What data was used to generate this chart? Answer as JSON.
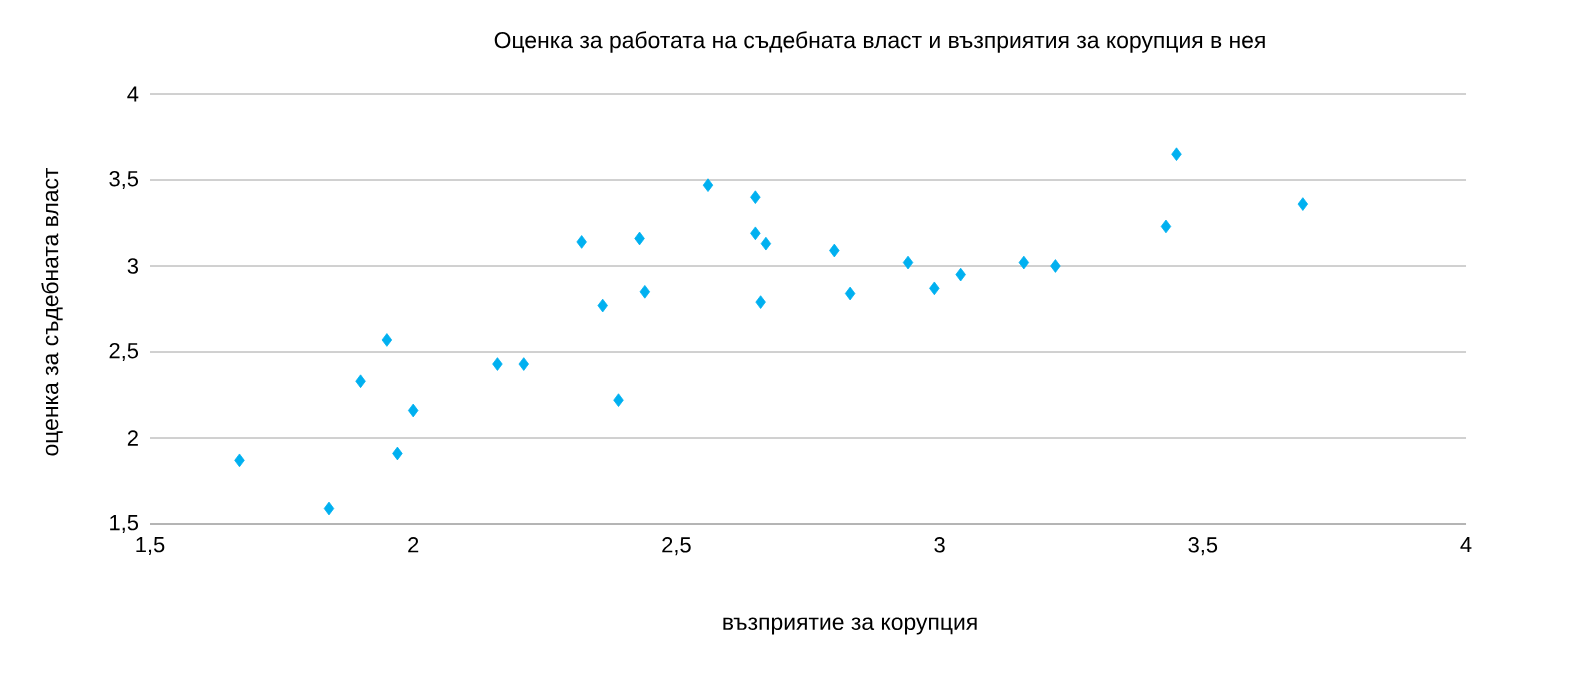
{
  "chart_data": {
    "type": "scatter",
    "title": "Оценка за работата на съдебната власт и възприятия за корупция в нея",
    "xlabel": "възприятие за корупция",
    "ylabel": "оценка за съдебната власт",
    "xlim": [
      1.5,
      4
    ],
    "ylim": [
      1.5,
      4
    ],
    "xticks": [
      {
        "value": 1.5,
        "label": "1,5"
      },
      2,
      {
        "value": 2.5,
        "label": "2,5"
      },
      3,
      {
        "value": 3.5,
        "label": "3,5"
      },
      4
    ],
    "yticks": [
      {
        "value": 1.5,
        "label": "1,5"
      },
      2,
      {
        "value": 2.5,
        "label": "2,5"
      },
      3,
      {
        "value": 3.5,
        "label": "3,5"
      },
      4
    ],
    "grid": "y",
    "marker": "diamond",
    "series": [
      {
        "color": "#00b0f0",
        "x": [
          1.67,
          1.84,
          1.9,
          1.95,
          1.97,
          2.0,
          2.16,
          2.21,
          2.32,
          2.36,
          2.39,
          2.43,
          2.44,
          2.56,
          2.65,
          2.65,
          2.67,
          2.66,
          2.8,
          2.83,
          2.94,
          2.99,
          3.04,
          3.16,
          3.22,
          3.43,
          3.45,
          3.69
        ],
        "values": [
          1.87,
          1.59,
          2.33,
          2.57,
          1.91,
          2.16,
          2.43,
          2.43,
          3.14,
          2.77,
          2.22,
          3.16,
          2.85,
          3.47,
          3.4,
          3.19,
          3.13,
          2.79,
          3.09,
          2.84,
          3.02,
          2.87,
          2.95,
          3.02,
          3.0,
          3.23,
          3.65,
          3.36
        ]
      }
    ]
  }
}
